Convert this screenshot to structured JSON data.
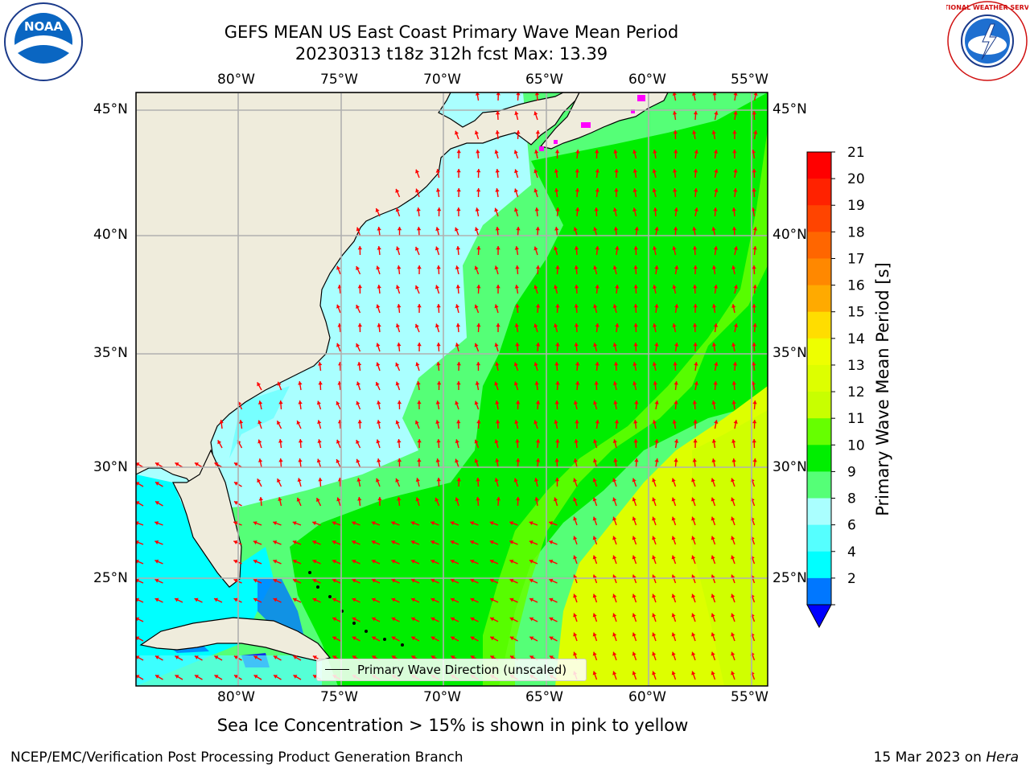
{
  "title": {
    "line1": "GEFS MEAN US East Coast Primary Wave Mean Period",
    "line2": "20230313 t18z 312h fcst   Max: 13.39"
  },
  "logos": {
    "left": "NOAA",
    "right": "NATIONAL WEATHER SERVICE"
  },
  "axes": {
    "lon_ticks": [
      "80°W",
      "75°W",
      "70°W",
      "65°W",
      "60°W",
      "55°W"
    ],
    "lat_ticks": [
      "45°N",
      "40°N",
      "35°N",
      "30°N",
      "25°N"
    ]
  },
  "colorbar": {
    "label": "Primary Wave Mean Period [s]",
    "ticks": [
      "21",
      "20",
      "19",
      "18",
      "17",
      "16",
      "15",
      "14",
      "13",
      "12",
      "11",
      "10",
      "9",
      "8",
      "6",
      "4",
      "2"
    ],
    "colors": [
      "#ff0000",
      "#ff2200",
      "#ff4400",
      "#ff6600",
      "#ff8800",
      "#ffaa00",
      "#ffdd00",
      "#eeff00",
      "#ddff00",
      "#c8ff00",
      "#66ff00",
      "#00ee00",
      "#55ff77",
      "#aaffff",
      "#55ffff",
      "#00ffff",
      "#0077ff"
    ],
    "extend_color": "#0000ff"
  },
  "map_colors": {
    "land": "#efecdc",
    "grid": "#b0b0b0",
    "arrow": "#ff0000",
    "ice": "#ff00ff"
  },
  "legend": {
    "label": "Primary Wave Direction (unscaled)"
  },
  "subtitle": "Sea Ice Concentration > 15% is shown in pink to yellow",
  "footer": {
    "left": "NCEP/EMC/Verification Post Processing Product Generation Branch",
    "right_date": "15 Mar 2023 on ",
    "right_machine": "Hera"
  }
}
